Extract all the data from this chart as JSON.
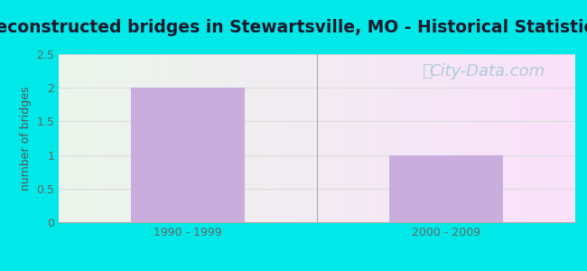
{
  "title": "Reconstructed bridges in Stewartsville, MO - Historical Statistics",
  "categories": [
    "1990 - 1999",
    "2000 - 2009"
  ],
  "values": [
    2,
    1
  ],
  "bar_color": "#c9aedd",
  "bar_edge_color": "none",
  "ylabel": "number of bridges",
  "ylim": [
    0,
    2.5
  ],
  "yticks": [
    0,
    0.5,
    1,
    1.5,
    2,
    2.5
  ],
  "title_fontsize": 13.5,
  "title_color": "#1a1a2e",
  "title_fontweight": "bold",
  "ylabel_color": "#555555",
  "ylabel_fontsize": 9,
  "tick_label_color": "#666666",
  "tick_fontsize": 9,
  "outer_bg_color": "#00e8e8",
  "grid_color": "#dddddd",
  "watermark_text": "City-Data.com",
  "watermark_color": "#aac8d8",
  "watermark_fontsize": 13
}
